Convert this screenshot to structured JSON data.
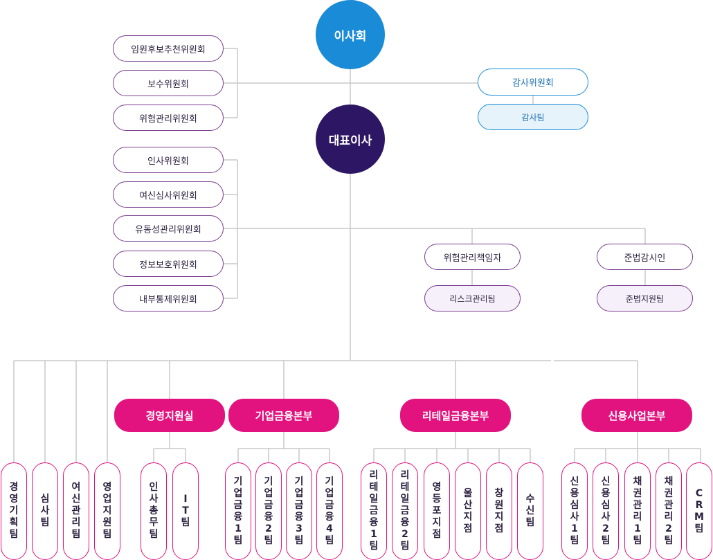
{
  "board": "이사회",
  "ceo": "대표이사",
  "board_committees": [
    "임원후보추천위원회",
    "보수위원회",
    "위험관리위원회"
  ],
  "audit": {
    "committee": "감사위원회",
    "team": "감사팀"
  },
  "ceo_committees": [
    "인사위원회",
    "여신심사위원회",
    "유동성관리위원회",
    "정보보호위원회",
    "내부통제위원회"
  ],
  "risk_officer": {
    "title": "위험관리책임자",
    "team": "리스크관리팀"
  },
  "compliance_officer": {
    "title": "준법감시인",
    "team": "준법지원팀"
  },
  "direct_teams": [
    "경영기획팀",
    "심사팀",
    "여신관리팀",
    "영업지원팀"
  ],
  "divisions": [
    {
      "name": "경영지원실",
      "teams": [
        "인사총무팀",
        "IT팀"
      ]
    },
    {
      "name": "기업금융본부",
      "teams": [
        "기업금융1팀",
        "기업금융2팀",
        "기업금융3팀",
        "기업금융4팀"
      ]
    },
    {
      "name": "리테일금융본부",
      "teams": [
        "리테일금융1팀",
        "리테일금융2팀",
        "영등포지점",
        "울산지점",
        "창원지점",
        "수신팀"
      ]
    },
    {
      "name": "신용사업본부",
      "teams": [
        "신용심사1팀",
        "신용심사2팀",
        "채권관리1팀",
        "채권관리2팀",
        "CRM팀"
      ]
    }
  ]
}
